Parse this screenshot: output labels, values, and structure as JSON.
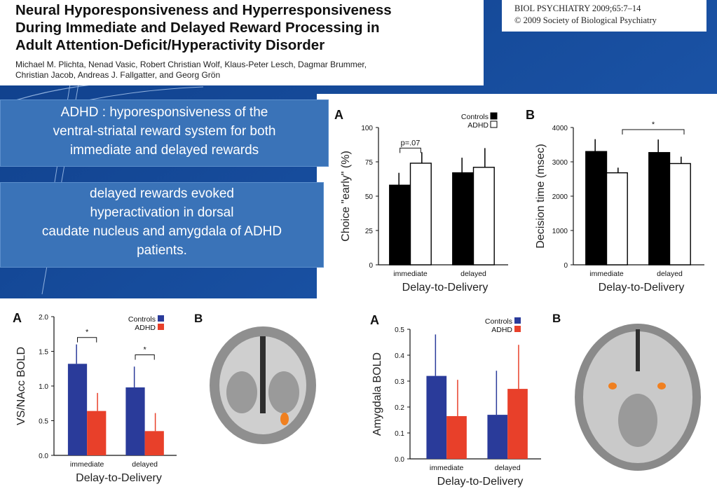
{
  "paper": {
    "title_lines": [
      "Neural Hyporesponsiveness and Hyperresponsiveness",
      "During Immediate and Delayed Reward Processing in",
      "Adult Attention-Deficit/Hyperactivity Disorder"
    ],
    "author_lines": [
      "Michael M. Plichta, Nenad Vasic, Robert Christian Wolf, Klaus-Peter Lesch, Dagmar Brummer,",
      "Christian Jacob, Andreas J. Fallgatter, and Georg Grön"
    ],
    "citation": [
      "BIOL PSYCHIATRY 2009;65:7–14",
      "© 2009 Society of Biological Psychiatry"
    ]
  },
  "notes": {
    "hypo_lines": [
      "ADHD : hyporesponsiveness of the",
      "ventral-striatal reward system for both",
      "immediate and delayed rewards"
    ],
    "hyper_lines": [
      "delayed rewards evoked",
      "hyperactivation in dorsal",
      "caudate  nucleus and amygdala of ADHD",
      "patients."
    ]
  },
  "colors": {
    "controls_top": "#000000",
    "adhd_top": "#ffffff",
    "controls_bottom": "#2a3b9a",
    "adhd_bottom": "#e8402a"
  },
  "chart_data": [
    {
      "type": "bar",
      "panel": "A",
      "ylabel": "Choice \"early\" (%)",
      "xlabel": "Delay-to-Delivery",
      "categories": [
        "immediate",
        "delayed"
      ],
      "series": [
        {
          "name": "Controls",
          "values": [
            58,
            67
          ]
        },
        {
          "name": "ADHD",
          "values": [
            74,
            71
          ]
        }
      ],
      "errors": [
        [
          9,
          11
        ],
        [
          8,
          14
        ]
      ],
      "ylim": [
        0,
        100
      ],
      "yticks": [
        0,
        25,
        50,
        75,
        100
      ],
      "annotations": [
        {
          "text": "p=.07",
          "category": 0
        }
      ],
      "legend": "top-right"
    },
    {
      "type": "bar",
      "panel": "B",
      "ylabel": "Decision time (msec)",
      "xlabel": "Delay-to-Delivery",
      "categories": [
        "immediate",
        "delayed"
      ],
      "series": [
        {
          "name": "Controls",
          "values": [
            3300,
            3270
          ]
        },
        {
          "name": "ADHD",
          "values": [
            2680,
            2950
          ]
        }
      ],
      "errors": [
        [
          360,
          380
        ],
        [
          150,
          200
        ]
      ],
      "ylim": [
        0,
        4000
      ],
      "yticks": [
        0,
        1000,
        2000,
        3000,
        4000
      ],
      "annotations": [
        {
          "text": "*",
          "between": "immediate-ADHD-delayed-ADHD"
        }
      ]
    },
    {
      "type": "bar",
      "panel": "A",
      "ylabel": "VS/NAcc BOLD",
      "xlabel": "Delay-to-Delivery",
      "categories": [
        "immediate",
        "delayed"
      ],
      "series": [
        {
          "name": "Controls",
          "values": [
            1.32,
            0.98
          ]
        },
        {
          "name": "ADHD",
          "values": [
            0.64,
            0.35
          ]
        }
      ],
      "errors": [
        [
          0.28,
          0.3
        ],
        [
          0.26,
          0.26
        ]
      ],
      "ylim": [
        0,
        2.0
      ],
      "yticks": [
        0.0,
        0.5,
        1.0,
        1.5,
        2.0
      ],
      "annotations": [
        {
          "text": "*",
          "category": 0
        },
        {
          "text": "*",
          "category": 1
        }
      ],
      "legend": "top-right"
    },
    {
      "type": "bar",
      "panel": "A",
      "ylabel": "Amygdala BOLD",
      "xlabel": "Delay-to-Delivery",
      "categories": [
        "immediate",
        "delayed"
      ],
      "series": [
        {
          "name": "Controls",
          "values": [
            0.32,
            0.17
          ]
        },
        {
          "name": "ADHD",
          "values": [
            0.165,
            0.27
          ]
        }
      ],
      "errors": [
        [
          0.16,
          0.17
        ],
        [
          0.14,
          0.17
        ]
      ],
      "ylim": [
        0,
        0.5
      ],
      "yticks": [
        0.0,
        0.1,
        0.2,
        0.3,
        0.4,
        0.5
      ],
      "legend": "top-right"
    }
  ],
  "figure_letters": {
    "brain_coronal": "B",
    "brain_axial": "B"
  }
}
